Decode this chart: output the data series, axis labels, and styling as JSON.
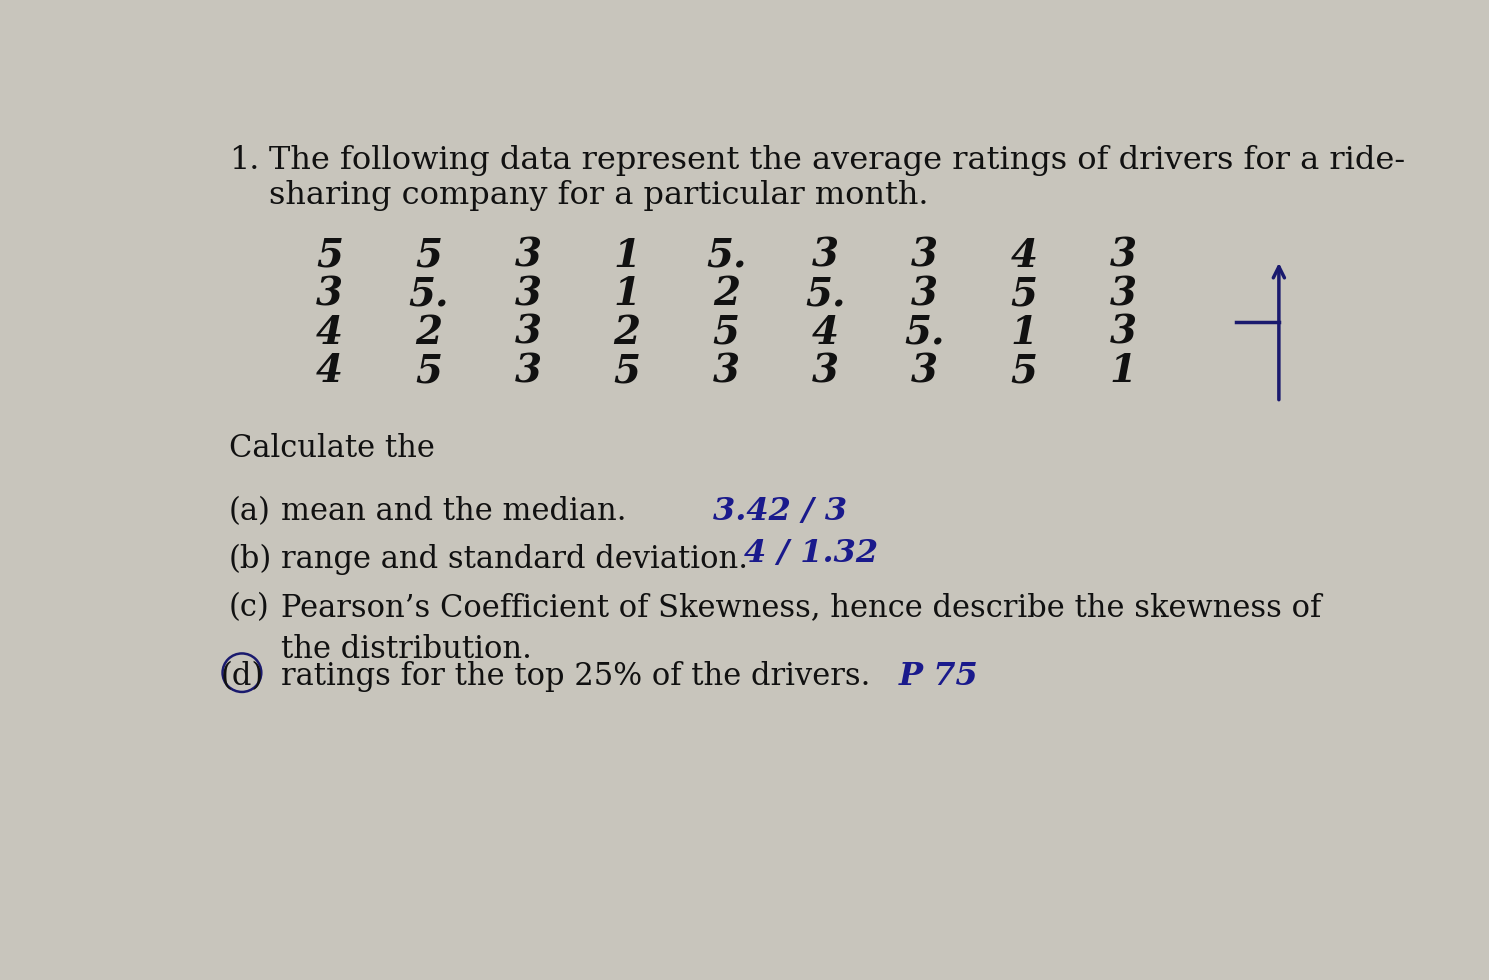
{
  "background_color": "#c8c5bc",
  "title_number": "1.",
  "title_text_line1": "The following data represent the average ratings of drivers for a ride-",
  "title_text_line2": "sharing company for a particular month.",
  "data_rows": [
    [
      "5",
      "5",
      "3",
      "1",
      "5.",
      "3",
      "3",
      "4",
      "3"
    ],
    [
      "3",
      "5.",
      "3",
      "1",
      "2",
      "5.",
      "3",
      "5",
      "3"
    ],
    [
      "4",
      "2",
      "3",
      "2",
      "5",
      "4",
      "5.",
      "1",
      "3"
    ],
    [
      "4",
      "5",
      "3",
      "5",
      "3",
      "3",
      "3",
      "5",
      "1"
    ]
  ],
  "calculate_text": "Calculate the",
  "parts_a_label": "(a)",
  "parts_a_text": "mean and the median.",
  "parts_a_answer": "3.42 / 3",
  "parts_b_label": "(b)",
  "parts_b_text": "range and standard deviation.",
  "parts_b_answer": "4 / 1.32",
  "parts_c_label": "(c)",
  "parts_c_text1": "Pearson’s Coefficient of Skewness, hence describe the skewness of",
  "parts_c_text2": "the distribution.",
  "parts_d_label": "(d)",
  "parts_d_text": "ratings for the top 25% of the drivers.",
  "parts_d_answer": "P 75",
  "font_size_title": 23,
  "font_size_data": 28,
  "font_size_parts": 22,
  "font_size_answer": 23,
  "arrow_color": "#1a1a6e",
  "answer_color": "#1a1a8c",
  "text_color": "#111111"
}
